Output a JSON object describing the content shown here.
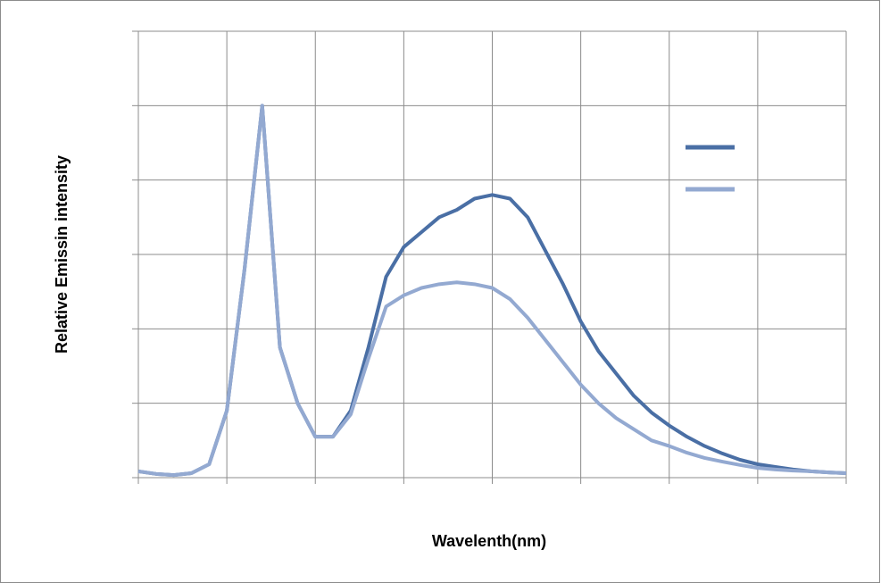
{
  "chart_data": {
    "type": "line",
    "xlabel": "Wavelenth(nm)",
    "ylabel": "Relative Emissin intensity",
    "x": [
      380,
      390,
      400,
      410,
      420,
      430,
      440,
      450,
      460,
      470,
      480,
      490,
      500,
      510,
      520,
      530,
      540,
      550,
      560,
      570,
      580,
      590,
      600,
      610,
      620,
      630,
      640,
      650,
      660,
      670,
      680,
      690,
      700,
      710,
      720,
      730,
      740,
      750,
      760,
      770,
      780
    ],
    "series": [
      {
        "color": "#4a6fa5",
        "values": [
          0.017,
          0.01,
          0.007,
          0.012,
          0.036,
          0.18,
          0.56,
          1.0,
          0.35,
          0.2,
          0.11,
          0.11,
          0.18,
          0.35,
          0.54,
          0.62,
          0.66,
          0.7,
          0.72,
          0.75,
          0.76,
          0.75,
          0.7,
          0.61,
          0.52,
          0.42,
          0.34,
          0.28,
          0.22,
          0.175,
          0.14,
          0.11,
          0.085,
          0.065,
          0.048,
          0.036,
          0.029,
          0.022,
          0.017,
          0.014,
          0.012
        ]
      },
      {
        "color": "#93a9d1",
        "values": [
          0.017,
          0.01,
          0.007,
          0.012,
          0.036,
          0.18,
          0.56,
          1.0,
          0.35,
          0.2,
          0.11,
          0.11,
          0.17,
          0.32,
          0.46,
          0.49,
          0.51,
          0.52,
          0.525,
          0.52,
          0.51,
          0.48,
          0.43,
          0.37,
          0.31,
          0.25,
          0.2,
          0.16,
          0.13,
          0.1,
          0.085,
          0.067,
          0.053,
          0.043,
          0.034,
          0.026,
          0.022,
          0.019,
          0.017,
          0.014,
          0.012
        ]
      }
    ],
    "xlim": [
      380,
      780
    ],
    "xticks": [
      380,
      430,
      480,
      530,
      580,
      630,
      680,
      730,
      780
    ],
    "ylim": [
      0,
      1.2
    ],
    "yticks": [
      0,
      0.2,
      0.4,
      0.6,
      0.8,
      1.0,
      1.2
    ],
    "grid": true,
    "legend": "upper right"
  }
}
